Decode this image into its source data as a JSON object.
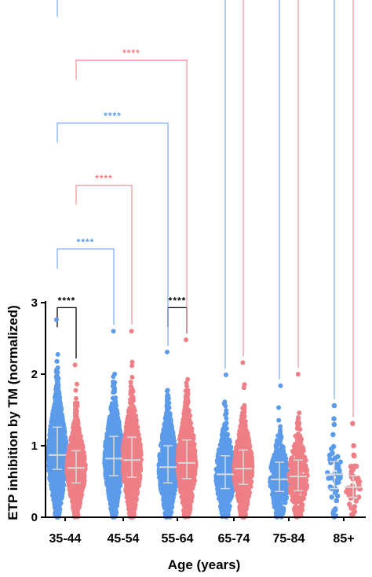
{
  "chart_data": {
    "type": "scatter",
    "subtype": "dot-plot",
    "xlabel": "Age (years)",
    "ylabel": "ETP inhibition by TM (normalized)",
    "ylim": [
      0,
      3
    ],
    "yticks": [
      0,
      1,
      2,
      3
    ],
    "categories": [
      "35-44",
      "45-54",
      "55-64",
      "65-74",
      "75-84",
      "85+"
    ],
    "colors": {
      "blue": "#5b9bea",
      "pink": "#ee7f86",
      "summary": "#d9d9d9",
      "black": "#000000"
    },
    "groups": [
      {
        "category": "35-44",
        "color": "blue",
        "median": 0.87,
        "q1": 0.67,
        "q3": 1.26,
        "min": 0,
        "max": 2.76,
        "n": 1200
      },
      {
        "category": "35-44",
        "color": "pink",
        "median": 0.69,
        "q1": 0.48,
        "q3": 0.93,
        "min": 0,
        "max": 2.13,
        "n": 1100
      },
      {
        "category": "45-54",
        "color": "blue",
        "median": 0.82,
        "q1": 0.58,
        "q3": 1.13,
        "min": 0,
        "max": 2.6,
        "n": 900
      },
      {
        "category": "45-54",
        "color": "pink",
        "median": 0.8,
        "q1": 0.56,
        "q3": 1.12,
        "min": 0,
        "max": 2.6,
        "n": 900
      },
      {
        "category": "55-64",
        "color": "blue",
        "median": 0.7,
        "q1": 0.48,
        "q3": 1.0,
        "min": 0,
        "max": 2.31,
        "n": 850
      },
      {
        "category": "55-64",
        "color": "pink",
        "median": 0.76,
        "q1": 0.54,
        "q3": 1.08,
        "min": 0,
        "max": 2.48,
        "n": 950
      },
      {
        "category": "65-74",
        "color": "blue",
        "median": 0.6,
        "q1": 0.4,
        "q3": 0.86,
        "min": 0,
        "max": 1.99,
        "n": 600
      },
      {
        "category": "65-74",
        "color": "pink",
        "median": 0.68,
        "q1": 0.46,
        "q3": 0.94,
        "min": 0,
        "max": 2.16,
        "n": 700
      },
      {
        "category": "75-84",
        "color": "blue",
        "median": 0.53,
        "q1": 0.36,
        "q3": 0.77,
        "min": 0,
        "max": 1.84,
        "n": 320
      },
      {
        "category": "75-84",
        "color": "pink",
        "median": 0.57,
        "q1": 0.37,
        "q3": 0.8,
        "min": 0,
        "max": 2.0,
        "n": 320
      },
      {
        "category": "85+",
        "color": "blue",
        "median": 0.6,
        "q1": 0.4,
        "q3": 0.78,
        "min": 0,
        "max": 1.56,
        "n": 45
      },
      {
        "category": "85+",
        "color": "pink",
        "median": 0.42,
        "q1": 0.28,
        "q3": 0.58,
        "min": 0,
        "max": 1.31,
        "n": 45
      }
    ],
    "comparisons": [
      {
        "from": 0,
        "to": 1,
        "label": "****",
        "color": "black",
        "level": 2.93
      },
      {
        "from": 4,
        "to": 5,
        "label": "****",
        "color": "black",
        "level": 2.93
      },
      {
        "from": 0,
        "to": 2,
        "label": "****",
        "color": "blue",
        "level": 3.75
      },
      {
        "from": 1,
        "to": 3,
        "label": "****",
        "color": "pink",
        "level": 4.64
      },
      {
        "from": 0,
        "to": 4,
        "label": "****",
        "color": "blue",
        "level": 5.51
      },
      {
        "from": 1,
        "to": 5,
        "label": "****",
        "color": "pink",
        "level": 6.39
      },
      {
        "from": 0,
        "to": 6,
        "label": "****",
        "color": "blue",
        "level": 7.27
      },
      {
        "from": 1,
        "to": 7,
        "label": "****",
        "color": "pink",
        "level": 8.16
      },
      {
        "from": 0,
        "to": 8,
        "label": "****",
        "color": "blue",
        "level": 9.04
      },
      {
        "from": 1,
        "to": 9,
        "label": "****",
        "color": "pink",
        "level": 9.91
      },
      {
        "from": 0,
        "to": 10,
        "label": "****",
        "color": "blue",
        "level": 10.79
      },
      {
        "from": 1,
        "to": 11,
        "label": "***",
        "color": "pink",
        "level": 11.69
      }
    ]
  }
}
